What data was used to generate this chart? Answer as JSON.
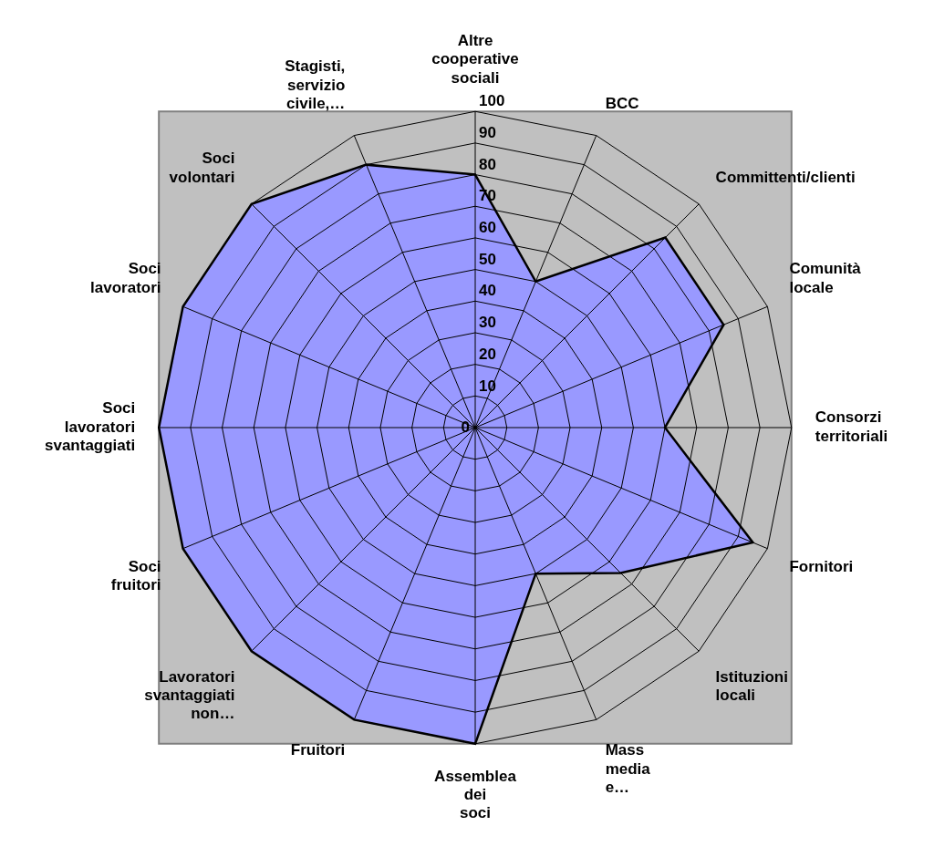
{
  "chart_data": {
    "type": "radar",
    "categories": [
      "Altre cooperative sociali",
      "BCC",
      "Committenti/clienti",
      "Comunità locale",
      "Consorzi territoriali",
      "Fornitori",
      "Istituzioni locali",
      "Mass media e…",
      "Assemblea dei soci",
      "Fruitori",
      "Lavoratori svantaggiati non…",
      "Soci fruitori",
      "Soci lavoratori svantaggiati",
      "Soci lavoratori",
      "Soci volontari",
      "Stagisti, servizio civile,…"
    ],
    "series": [
      {
        "color": "#9999ff",
        "values": [
          80,
          50,
          85,
          85,
          60,
          95,
          65,
          50,
          100,
          100,
          100,
          100,
          100,
          100,
          100,
          90
        ]
      }
    ],
    "ylim": [
      0,
      100
    ],
    "yticks": [
      0,
      10,
      20,
      30,
      40,
      50,
      60,
      70,
      80,
      90,
      100
    ],
    "grid": true
  }
}
